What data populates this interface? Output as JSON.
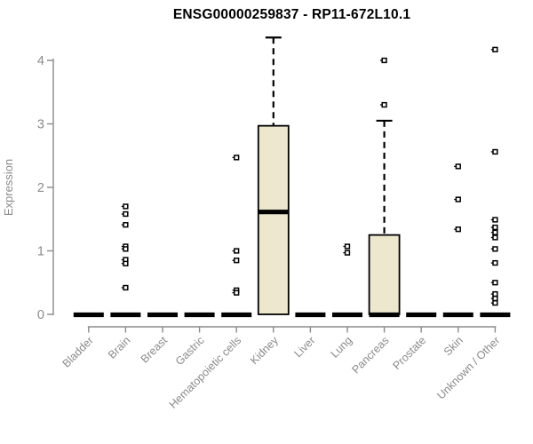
{
  "chart_data": {
    "type": "box",
    "title": "ENSG00000259837 - RP11-672L10.1",
    "ylabel": "Expression",
    "xlabel": "",
    "ylim": [
      0,
      4.45
    ],
    "yticks": [
      0,
      1,
      2,
      3,
      4
    ],
    "grid": "off",
    "legend": "none",
    "categories": [
      "Bladder",
      "Brain",
      "Breast",
      "Gastric",
      "Hematopoietic cells",
      "Kidney",
      "Liver",
      "Lung",
      "Pancreas",
      "Prostate",
      "Skin",
      "Unknown / Other"
    ],
    "boxes": [
      {
        "label": "Bladder",
        "q1": 0,
        "median": 0,
        "q3": 0,
        "whisker_low": 0,
        "whisker_high": 0,
        "outliers": []
      },
      {
        "label": "Brain",
        "q1": 0,
        "median": 0,
        "q3": 0,
        "whisker_low": 0,
        "whisker_high": 0,
        "outliers": [
          1.7,
          1.58,
          1.41,
          1.07,
          1.03,
          0.86,
          0.8,
          0.42
        ]
      },
      {
        "label": "Breast",
        "q1": 0,
        "median": 0,
        "q3": 0,
        "whisker_low": 0,
        "whisker_high": 0,
        "outliers": []
      },
      {
        "label": "Gastric",
        "q1": 0,
        "median": 0,
        "q3": 0,
        "whisker_low": 0,
        "whisker_high": 0,
        "outliers": []
      },
      {
        "label": "Hematopoietic cells",
        "q1": 0,
        "median": 0,
        "q3": 0,
        "whisker_low": 0,
        "whisker_high": 0,
        "outliers": [
          2.47,
          1.0,
          0.85,
          0.38,
          0.34
        ]
      },
      {
        "label": "Kidney",
        "q1": 0,
        "median": 1.62,
        "q3": 2.97,
        "whisker_low": 0,
        "whisker_high": 4.36,
        "outliers": []
      },
      {
        "label": "Liver",
        "q1": 0,
        "median": 0,
        "q3": 0,
        "whisker_low": 0,
        "whisker_high": 0,
        "outliers": []
      },
      {
        "label": "Lung",
        "q1": 0,
        "median": 0,
        "q3": 0,
        "whisker_low": 0,
        "whisker_high": 0,
        "outliers": [
          1.07,
          0.97
        ]
      },
      {
        "label": "Pancreas",
        "q1": 0,
        "median": 0,
        "q3": 1.25,
        "whisker_low": 0,
        "whisker_high": 3.05,
        "outliers": [
          3.3,
          4.0
        ]
      },
      {
        "label": "Prostate",
        "q1": 0,
        "median": 0,
        "q3": 0,
        "whisker_low": 0,
        "whisker_high": 0,
        "outliers": []
      },
      {
        "label": "Skin",
        "q1": 0,
        "median": 0,
        "q3": 0,
        "whisker_low": 0,
        "whisker_high": 0,
        "outliers": [
          2.33,
          1.81,
          1.34
        ]
      },
      {
        "label": "Unknown / Other",
        "q1": 0,
        "median": 0,
        "q3": 0,
        "whisker_low": 0,
        "whisker_high": 0,
        "outliers": [
          4.17,
          2.56,
          1.49,
          1.37,
          1.29,
          1.21,
          1.03,
          0.81,
          0.5,
          0.32,
          0.25,
          0.18
        ]
      }
    ],
    "colors": {
      "box_fill": "#EDE8CD",
      "box_stroke": "#000000",
      "median": "#000000",
      "whisker": "#000000",
      "outlier": "#000000",
      "axis": "#8a8a8a",
      "tick_label": "#8a8a8a",
      "title": "#000000"
    }
  }
}
